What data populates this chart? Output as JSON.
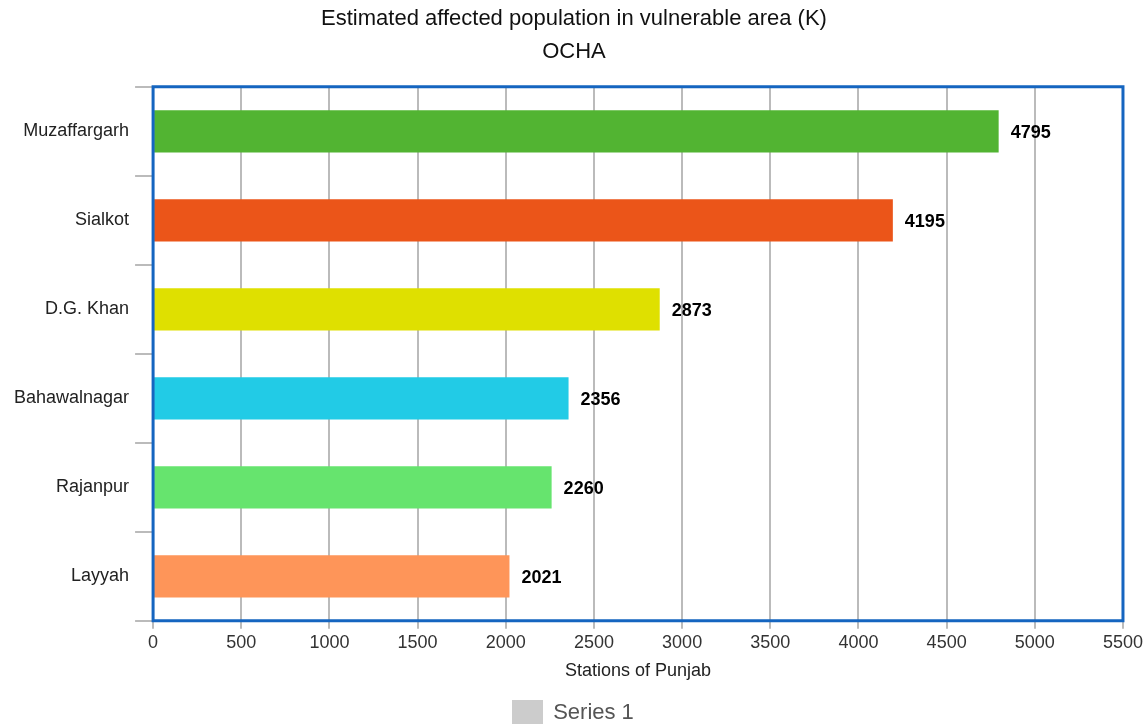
{
  "chart_data": {
    "type": "bar",
    "orientation": "horizontal",
    "title": "Estimated affected population in vulnerable area (K)",
    "subtitle": "OCHA",
    "xlabel": "Stations of Punjab",
    "categories": [
      "Muzaffargarh",
      "Sialkot",
      "D.G. Khan",
      "Bahawalnagar",
      "Rajanpur",
      "Layyah"
    ],
    "series": [
      {
        "name": "Series 1",
        "color": "#cccccc",
        "values": [
          4795,
          4195,
          2873,
          2356,
          2260,
          2021
        ],
        "colors": [
          "#52b432",
          "#eb5519",
          "#dfe000",
          "#22cbe6",
          "#66e46e",
          "#fe9559"
        ]
      }
    ],
    "xlim": [
      0,
      5500
    ],
    "xticks": [
      0,
      500,
      1000,
      1500,
      2000,
      2500,
      3000,
      3500,
      4000,
      4500,
      5000,
      5500
    ],
    "grid": "x",
    "legend": "bottom",
    "data_labels": true
  }
}
